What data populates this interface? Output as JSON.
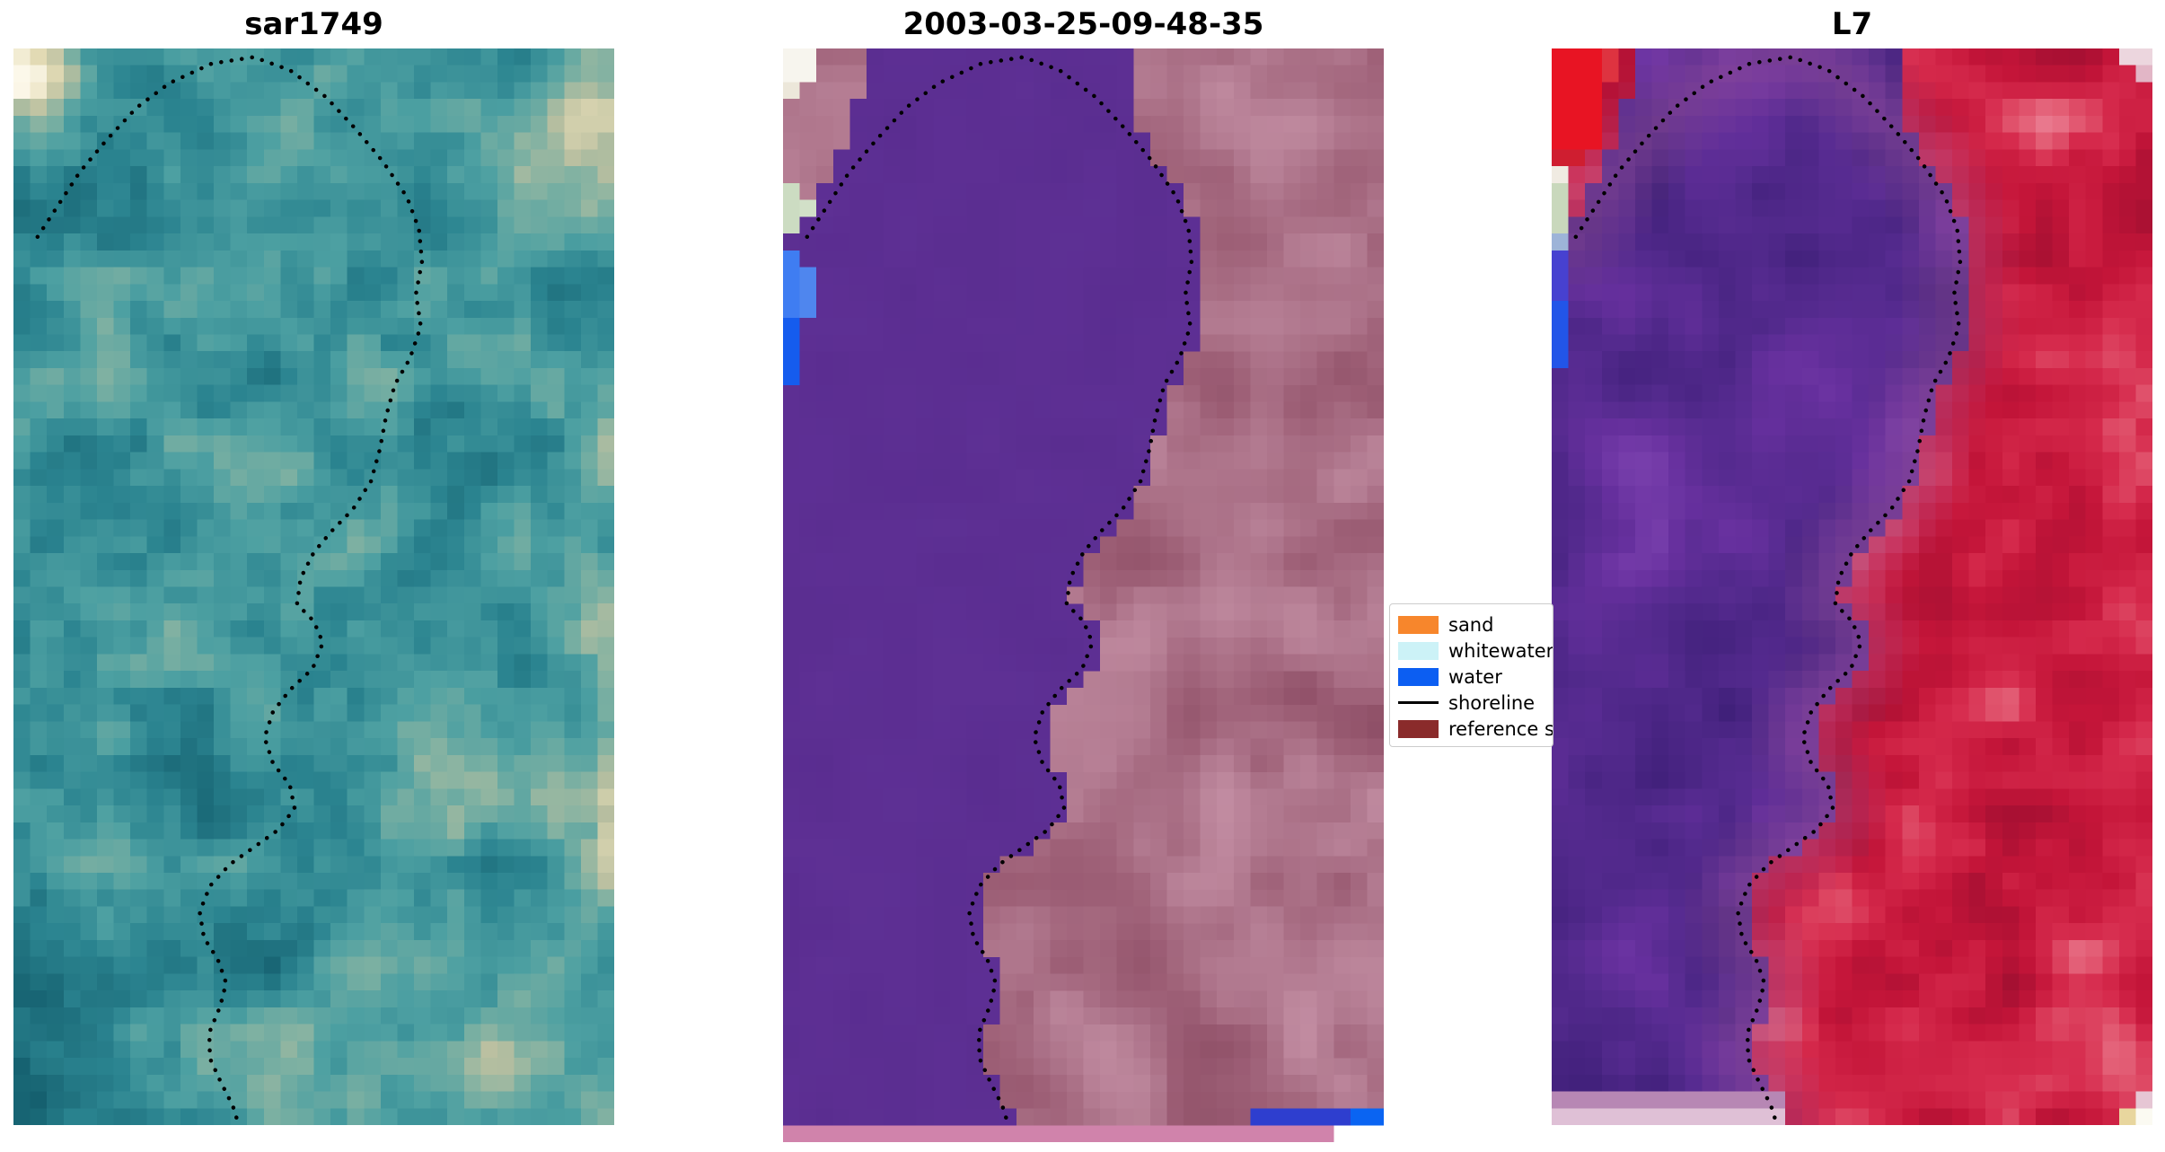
{
  "figure": {
    "background": "#ffffff",
    "panels": [
      {
        "title": "sar1749"
      },
      {
        "title": "2003-03-25-09-48-35"
      },
      {
        "title": "L7"
      }
    ],
    "legend": {
      "entries": [
        {
          "label": "sand",
          "swatch": "patch",
          "color": "#f7862c"
        },
        {
          "label": "whitewater",
          "swatch": "patch",
          "color": "#ccf2f7"
        },
        {
          "label": "water",
          "swatch": "patch",
          "color": "#0c5ef2"
        },
        {
          "label": "shoreline",
          "swatch": "line",
          "color": "#000000"
        },
        {
          "label": "reference shoreline",
          "swatch": "patch",
          "color": "#8a2b2b"
        }
      ]
    },
    "palette": {
      "water_purple": "#5a2d90",
      "reference_mauve": "#b27a90",
      "bottom_band_pink": "#d083ab",
      "l7_red": "#c41539",
      "l7_purple": "#542a8e",
      "sar_teal": "#2b8490",
      "sar_sand": "#e5dcb6"
    }
  },
  "chart_data": {
    "type": "line",
    "panel_titles": [
      "sar1749",
      "2003-03-25-09-48-35",
      "L7"
    ],
    "legend_entries": [
      "sand",
      "whitewater",
      "water",
      "shoreline",
      "reference shoreline"
    ],
    "shoreline_style": "dotted-black",
    "shoreline_points": [
      [
        0.04,
        0.175
      ],
      [
        0.075,
        0.145
      ],
      [
        0.11,
        0.115
      ],
      [
        0.155,
        0.085
      ],
      [
        0.205,
        0.055
      ],
      [
        0.26,
        0.032
      ],
      [
        0.33,
        0.014
      ],
      [
        0.4,
        0.008
      ],
      [
        0.46,
        0.02
      ],
      [
        0.52,
        0.045
      ],
      [
        0.57,
        0.075
      ],
      [
        0.615,
        0.105
      ],
      [
        0.655,
        0.138
      ],
      [
        0.675,
        0.168
      ],
      [
        0.68,
        0.198
      ],
      [
        0.67,
        0.228
      ],
      [
        0.678,
        0.258
      ],
      [
        0.66,
        0.288
      ],
      [
        0.635,
        0.312
      ],
      [
        0.62,
        0.342
      ],
      [
        0.61,
        0.372
      ],
      [
        0.595,
        0.402
      ],
      [
        0.565,
        0.428
      ],
      [
        0.53,
        0.448
      ],
      [
        0.5,
        0.468
      ],
      [
        0.478,
        0.492
      ],
      [
        0.472,
        0.516
      ],
      [
        0.5,
        0.532
      ],
      [
        0.515,
        0.552
      ],
      [
        0.498,
        0.576
      ],
      [
        0.46,
        0.596
      ],
      [
        0.432,
        0.616
      ],
      [
        0.418,
        0.64
      ],
      [
        0.432,
        0.664
      ],
      [
        0.46,
        0.684
      ],
      [
        0.468,
        0.706
      ],
      [
        0.44,
        0.726
      ],
      [
        0.4,
        0.742
      ],
      [
        0.36,
        0.758
      ],
      [
        0.327,
        0.778
      ],
      [
        0.31,
        0.802
      ],
      [
        0.317,
        0.826
      ],
      [
        0.34,
        0.846
      ],
      [
        0.354,
        0.868
      ],
      [
        0.344,
        0.89
      ],
      [
        0.326,
        0.914
      ],
      [
        0.327,
        0.938
      ],
      [
        0.345,
        0.96
      ],
      [
        0.365,
        0.982
      ],
      [
        0.375,
        1.0
      ]
    ]
  }
}
